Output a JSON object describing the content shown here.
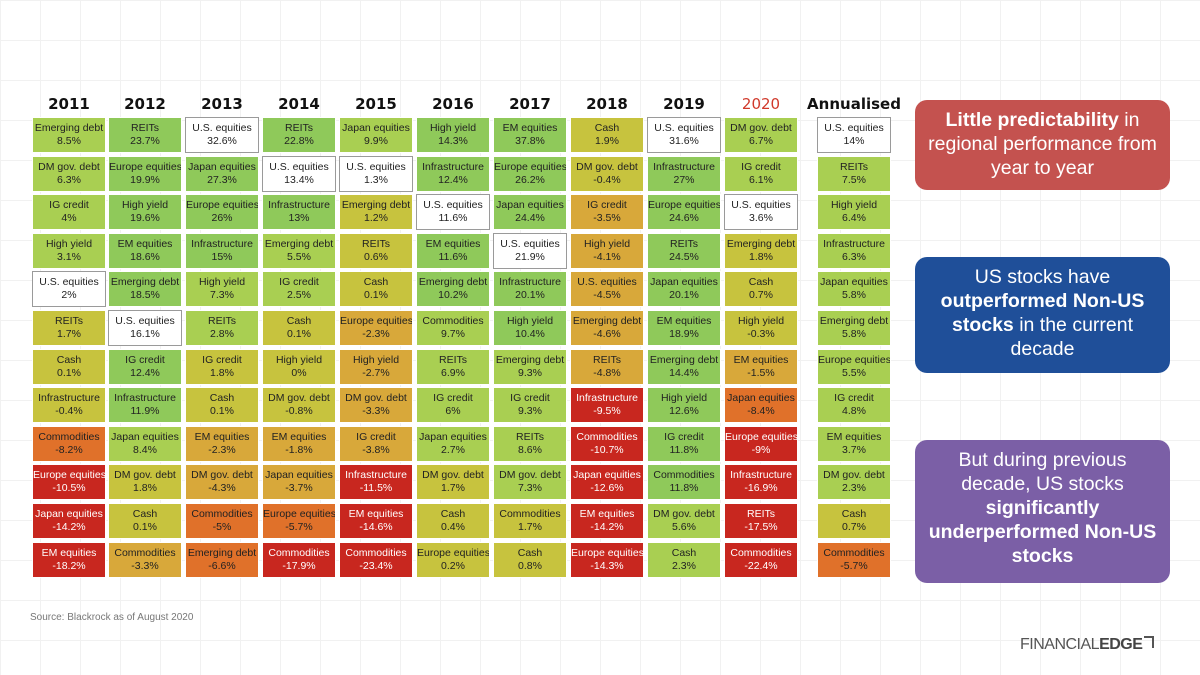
{
  "chart_data": {
    "type": "heatmap",
    "title": "",
    "xlabel": "",
    "ylabel": "",
    "highlight_year": "2020",
    "years": [
      "2011",
      "2012",
      "2013",
      "2014",
      "2015",
      "2016",
      "2017",
      "2018",
      "2019",
      "2020",
      "Annualised"
    ],
    "columns": [
      [
        [
          "Emerging debt",
          "8.5%"
        ],
        [
          "DM gov. debt",
          "6.3%"
        ],
        [
          "IG credit",
          "4%"
        ],
        [
          "High yield",
          "3.1%"
        ],
        [
          "U.S. equities",
          "2%"
        ],
        [
          "REITs",
          "1.7%"
        ],
        [
          "Cash",
          "0.1%"
        ],
        [
          "Infrastructure",
          "-0.4%"
        ],
        [
          "Commodities",
          "-8.2%"
        ],
        [
          "Europe equities",
          "-10.5%"
        ],
        [
          "Japan equities",
          "-14.2%"
        ],
        [
          "EM equities",
          "-18.2%"
        ]
      ],
      [
        [
          "REITs",
          "23.7%"
        ],
        [
          "Europe equities",
          "19.9%"
        ],
        [
          "High yield",
          "19.6%"
        ],
        [
          "EM equities",
          "18.6%"
        ],
        [
          "Emerging debt",
          "18.5%"
        ],
        [
          "U.S. equities",
          "16.1%"
        ],
        [
          "IG credit",
          "12.4%"
        ],
        [
          "Infrastructure",
          "11.9%"
        ],
        [
          "Japan equities",
          "8.4%"
        ],
        [
          "DM gov. debt",
          "1.8%"
        ],
        [
          "Cash",
          "0.1%"
        ],
        [
          "Commodities",
          "-3.3%"
        ]
      ],
      [
        [
          "U.S. equities",
          "32.6%"
        ],
        [
          "Japan equities",
          "27.3%"
        ],
        [
          "Europe equities",
          "26%"
        ],
        [
          "Infrastructure",
          "15%"
        ],
        [
          "High yield",
          "7.3%"
        ],
        [
          "REITs",
          "2.8%"
        ],
        [
          "IG credit",
          "1.8%"
        ],
        [
          "Cash",
          "0.1%"
        ],
        [
          "EM equities",
          "-2.3%"
        ],
        [
          "DM gov. debt",
          "-4.3%"
        ],
        [
          "Commodities",
          "-5%"
        ],
        [
          "Emerging debt",
          "-6.6%"
        ]
      ],
      [
        [
          "REITs",
          "22.8%"
        ],
        [
          "U.S. equities",
          "13.4%"
        ],
        [
          "Infrastructure",
          "13%"
        ],
        [
          "Emerging debt",
          "5.5%"
        ],
        [
          "IG credit",
          "2.5%"
        ],
        [
          "Cash",
          "0.1%"
        ],
        [
          "High yield",
          "0%"
        ],
        [
          "DM gov. debt",
          "-0.8%"
        ],
        [
          "EM equities",
          "-1.8%"
        ],
        [
          "Japan equities",
          "-3.7%"
        ],
        [
          "Europe equities",
          "-5.7%"
        ],
        [
          "Commodities",
          "-17.9%"
        ]
      ],
      [
        [
          "Japan equities",
          "9.9%"
        ],
        [
          "U.S. equities",
          "1.3%"
        ],
        [
          "Emerging debt",
          "1.2%"
        ],
        [
          "REITs",
          "0.6%"
        ],
        [
          "Cash",
          "0.1%"
        ],
        [
          "Europe equities",
          "-2.3%"
        ],
        [
          "High yield",
          "-2.7%"
        ],
        [
          "DM gov. debt",
          "-3.3%"
        ],
        [
          "IG credit",
          "-3.8%"
        ],
        [
          "Infrastructure",
          "-11.5%"
        ],
        [
          "EM equities",
          "-14.6%"
        ],
        [
          "Commodities",
          "-23.4%"
        ]
      ],
      [
        [
          "High yield",
          "14.3%"
        ],
        [
          "Infrastructure",
          "12.4%"
        ],
        [
          "U.S. equities",
          "11.6%"
        ],
        [
          "EM equities",
          "11.6%"
        ],
        [
          "Emerging debt",
          "10.2%"
        ],
        [
          "Commodities",
          "9.7%"
        ],
        [
          "REITs",
          "6.9%"
        ],
        [
          "IG credit",
          "6%"
        ],
        [
          "Japan equities",
          "2.7%"
        ],
        [
          "DM gov. debt",
          "1.7%"
        ],
        [
          "Cash",
          "0.4%"
        ],
        [
          "Europe equities",
          "0.2%"
        ]
      ],
      [
        [
          "EM equities",
          "37.8%"
        ],
        [
          "Europe equities",
          "26.2%"
        ],
        [
          "Japan equities",
          "24.4%"
        ],
        [
          "U.S. equities",
          "21.9%"
        ],
        [
          "Infrastructure",
          "20.1%"
        ],
        [
          "High yield",
          "10.4%"
        ],
        [
          "Emerging debt",
          "9.3%"
        ],
        [
          "IG credit",
          "9.3%"
        ],
        [
          "REITs",
          "8.6%"
        ],
        [
          "DM gov. debt",
          "7.3%"
        ],
        [
          "Commodities",
          "1.7%"
        ],
        [
          "Cash",
          "0.8%"
        ]
      ],
      [
        [
          "Cash",
          "1.9%"
        ],
        [
          "DM gov. debt",
          "-0.4%"
        ],
        [
          "IG credit",
          "-3.5%"
        ],
        [
          "High yield",
          "-4.1%"
        ],
        [
          "U.S. equities",
          "-4.5%"
        ],
        [
          "Emerging debt",
          "-4.6%"
        ],
        [
          "REITs",
          "-4.8%"
        ],
        [
          "Infrastructure",
          "-9.5%"
        ],
        [
          "Commodities",
          "-10.7%"
        ],
        [
          "Japan equities",
          "-12.6%"
        ],
        [
          "EM equities",
          "-14.2%"
        ],
        [
          "Europe equities",
          "-14.3%"
        ]
      ],
      [
        [
          "U.S. equities",
          "31.6%"
        ],
        [
          "Infrastructure",
          "27%"
        ],
        [
          "Europe equities",
          "24.6%"
        ],
        [
          "REITs",
          "24.5%"
        ],
        [
          "Japan equities",
          "20.1%"
        ],
        [
          "EM equities",
          "18.9%"
        ],
        [
          "Emerging debt",
          "14.4%"
        ],
        [
          "High yield",
          "12.6%"
        ],
        [
          "IG credit",
          "11.8%"
        ],
        [
          "Commodities",
          "11.8%"
        ],
        [
          "DM gov. debt",
          "5.6%"
        ],
        [
          "Cash",
          "2.3%"
        ]
      ],
      [
        [
          "DM gov. debt",
          "6.7%"
        ],
        [
          "IG credit",
          "6.1%"
        ],
        [
          "U.S. equities",
          "3.6%"
        ],
        [
          "Emerging debt",
          "1.8%"
        ],
        [
          "Cash",
          "0.7%"
        ],
        [
          "High yield",
          "-0.3%"
        ],
        [
          "EM equities",
          "-1.5%"
        ],
        [
          "Japan equities",
          "-8.4%"
        ],
        [
          "Europe equities",
          "-9%"
        ],
        [
          "Infrastructure",
          "-16.9%"
        ],
        [
          "REITs",
          "-17.5%"
        ],
        [
          "Commodities",
          "-22.4%"
        ]
      ],
      [
        [
          "U.S. equities",
          "14%"
        ],
        [
          "REITs",
          "7.5%"
        ],
        [
          "High yield",
          "6.4%"
        ],
        [
          "Infrastructure",
          "6.3%"
        ],
        [
          "Japan equities",
          "5.8%"
        ],
        [
          "Emerging debt",
          "5.8%"
        ],
        [
          "Europe equities",
          "5.5%"
        ],
        [
          "IG credit",
          "4.8%"
        ],
        [
          "EM equities",
          "3.7%"
        ],
        [
          "DM gov. debt",
          "2.3%"
        ],
        [
          "Cash",
          "0.7%"
        ],
        [
          "Commodities",
          "-5.7%"
        ]
      ]
    ]
  },
  "callouts": [
    {
      "parts": [
        {
          "text": "Little predictability",
          "bold": true
        },
        {
          "text": " in regional performance from year to year",
          "bold": false
        }
      ],
      "color": "#c4524f"
    },
    {
      "parts": [
        {
          "text": "US stocks have ",
          "bold": false
        },
        {
          "text": "outperformed Non-US stocks",
          "bold": true
        },
        {
          "text": " in the current decade",
          "bold": false
        }
      ],
      "color": "#1f4f99"
    },
    {
      "parts": [
        {
          "text": "But during previous decade, US stocks ",
          "bold": false
        },
        {
          "text": "significantly underperformed Non-US stocks",
          "bold": true
        }
      ],
      "color": "#7b5fa6"
    }
  ],
  "source": "Source: Blackrock as of August 2020",
  "brand": {
    "part1": "FINANCIAL",
    "part2": "EDGE"
  },
  "colors": {
    "white_asset": "U.S. equities",
    "scale": [
      "#c8271f",
      "#e0712a",
      "#d8a83a",
      "#c7c33e",
      "#a9cf52",
      "#8fc95a"
    ]
  }
}
